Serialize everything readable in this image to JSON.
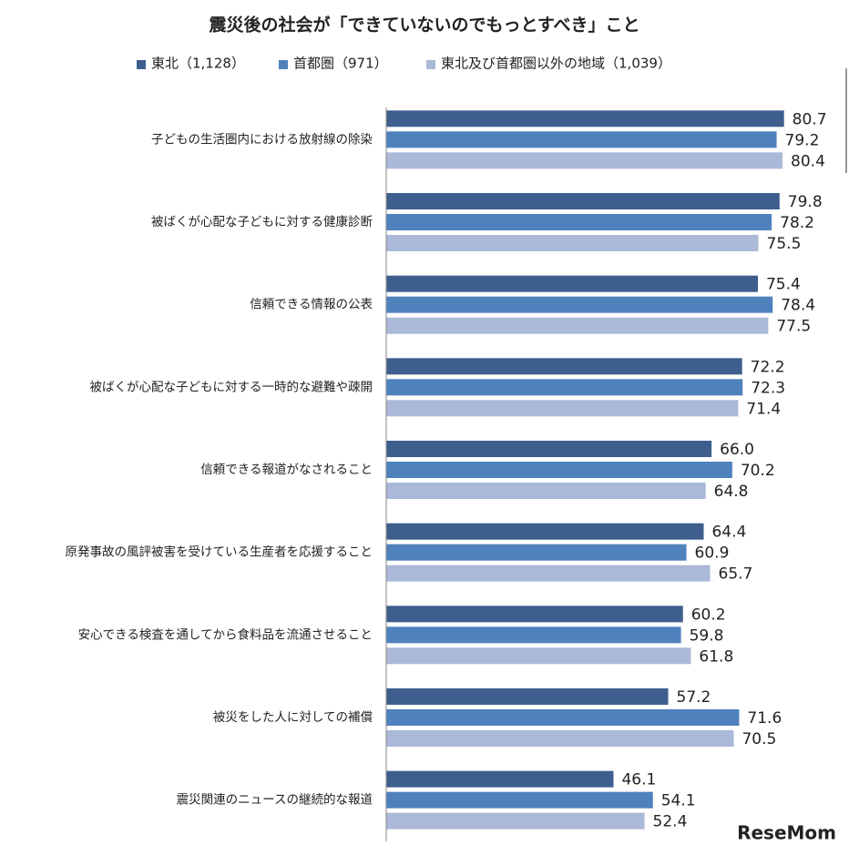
{
  "chart_data": {
    "type": "hbar",
    "title": "震災後の社会が「できていないのでもっとすべき」こと",
    "categories": [
      "子どもの生活圏内における放射線の除染",
      "被ばくが心配な子どもに対する健康診断",
      "信頼できる情報の公表",
      "被ばくが心配な子どもに対する一時的な避難や疎開",
      "信頼できる報道がなされること",
      "原発事故の風評被害を受けている生産者を応援すること",
      "安心できる検査を通してから食料品を流通させること",
      "被災をした人に対しての補償",
      "震災関連のニュースの継続的な報道"
    ],
    "series": [
      {
        "name": "東北（1,128）",
        "color": "#3e5f8e",
        "values": [
          80.7,
          79.8,
          75.4,
          72.2,
          66.0,
          64.4,
          60.2,
          57.2,
          46.1
        ],
        "value_labels": [
          "80.7",
          "79.8",
          "75.4",
          "72.2",
          "66.0",
          "64.4",
          "60.2",
          "57.2",
          "46.1"
        ]
      },
      {
        "name": "首都圏（971）",
        "color": "#4f81bd",
        "values": [
          79.2,
          78.2,
          78.4,
          72.3,
          70.2,
          60.9,
          59.8,
          71.6,
          54.1
        ],
        "value_labels": [
          "79.2",
          "78.2",
          "78.4",
          "72.3",
          "70.2",
          "60.9",
          "59.8",
          "71.6",
          "54.1"
        ]
      },
      {
        "name": "東北及び首都圏以外の地域（1,039）",
        "color": "#aab9d7",
        "values": [
          80.4,
          75.5,
          77.5,
          71.4,
          64.8,
          65.7,
          61.8,
          70.5,
          52.4
        ],
        "value_labels": [
          "80.4",
          "75.5",
          "77.5",
          "71.4",
          "64.8",
          "65.7",
          "61.8",
          "70.5",
          "52.4"
        ]
      }
    ],
    "xlim": [
      0,
      90
    ],
    "legend": "top",
    "watermark": "ReseMom"
  }
}
